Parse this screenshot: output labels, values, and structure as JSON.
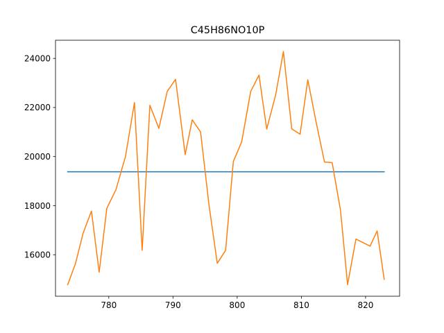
{
  "chart_data": {
    "type": "line",
    "title": "C45H86NO10P",
    "xlabel": "",
    "ylabel": "",
    "xlim": [
      771.7,
      825.3
    ],
    "ylim": [
      14310,
      24740
    ],
    "xticks": [
      780,
      790,
      800,
      810,
      820
    ],
    "yticks": [
      16000,
      18000,
      20000,
      22000,
      24000
    ],
    "grid": false,
    "series": [
      {
        "color": "#1f77b4",
        "x": [
          773.6,
          822.9
        ],
        "y": [
          19380,
          19380
        ]
      },
      {
        "color": "#ff7f0e",
        "x": [
          773.6,
          774.8,
          776.0,
          777.3,
          778.5,
          779.7,
          781.1,
          782.6,
          784.0,
          785.2,
          786.4,
          787.8,
          789.1,
          790.4,
          791.9,
          793.0,
          794.3,
          795.6,
          796.9,
          798.2,
          799.4,
          800.7,
          802.1,
          803.4,
          804.6,
          806.0,
          807.2,
          808.5,
          809.8,
          811.0,
          812.3,
          813.6,
          814.8,
          816.1,
          817.2,
          818.5,
          820.7,
          821.8,
          822.9
        ],
        "y": [
          14780,
          15630,
          16880,
          17780,
          15290,
          17900,
          18640,
          20000,
          22200,
          16180,
          22090,
          21150,
          22650,
          23150,
          20080,
          21500,
          21000,
          18050,
          15650,
          16180,
          19800,
          20600,
          22650,
          23320,
          21120,
          22520,
          24280,
          21130,
          20910,
          23130,
          21400,
          19780,
          19750,
          17800,
          14780,
          16640,
          16350,
          16970,
          15000
        ]
      }
    ]
  }
}
